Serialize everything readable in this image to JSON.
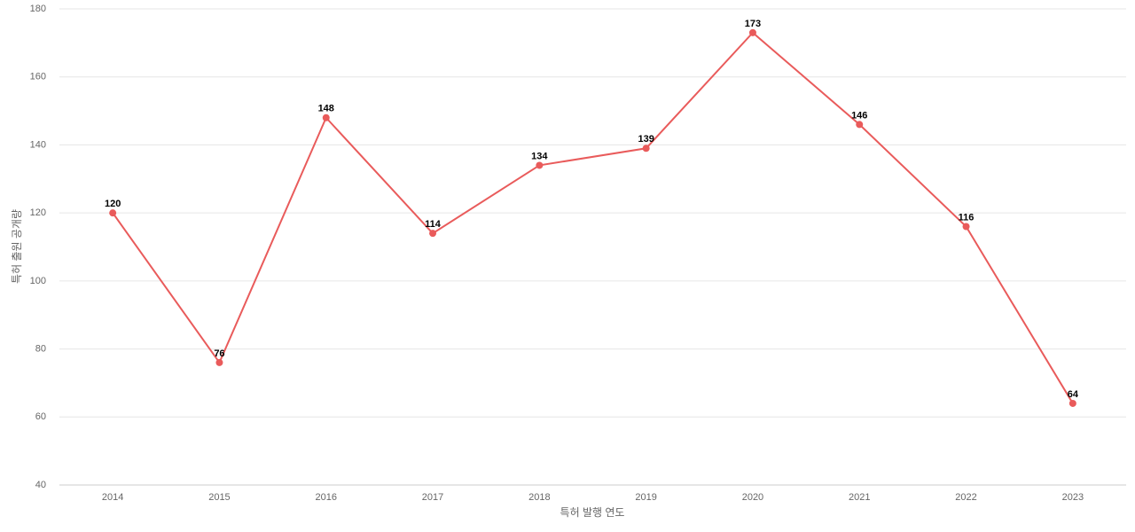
{
  "chart_data": {
    "type": "line",
    "x_label": "특허 발행 연도",
    "y_label": "특허 출원 공개량",
    "categories": [
      "2014",
      "2015",
      "2016",
      "2017",
      "2018",
      "2019",
      "2020",
      "2021",
      "2022",
      "2023"
    ],
    "series": [
      {
        "name": "특허 출원 공개량",
        "color": "#e95b5b",
        "values": [
          120,
          76,
          148,
          114,
          134,
          139,
          173,
          146,
          116,
          64
        ]
      }
    ],
    "ylim": [
      40,
      180
    ],
    "yticks": [
      40,
      60,
      80,
      100,
      120,
      140,
      160,
      180
    ],
    "grid": true
  }
}
